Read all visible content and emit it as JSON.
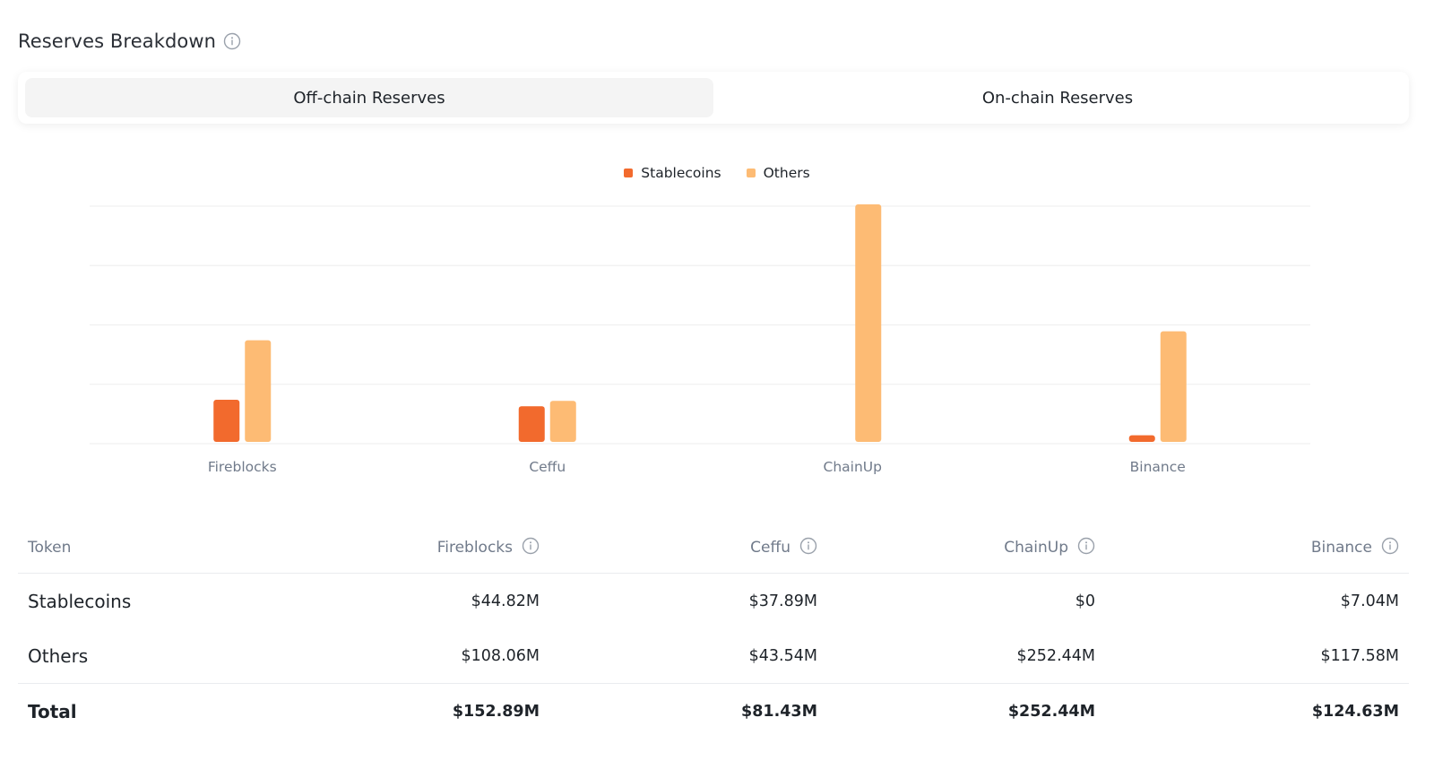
{
  "header": {
    "title": "Reserves Breakdown"
  },
  "tabs": [
    {
      "label": "Off-chain Reserves",
      "active": true
    },
    {
      "label": "On-chain Reserves",
      "active": false
    }
  ],
  "colors": {
    "stablecoins": "#f26a2d",
    "others": "#fdbb74",
    "grid": "#eeeeee",
    "axis_text": "#707a8a",
    "info_icon": "#9aa1ab"
  },
  "icons": {
    "info": "info-circle-icon"
  },
  "chart_data": {
    "type": "bar",
    "categories": [
      "Fireblocks",
      "Ceffu",
      "ChainUp",
      "Binance"
    ],
    "series": [
      {
        "name": "Stablecoins",
        "values": [
          44.82,
          37.89,
          0,
          7.04
        ]
      },
      {
        "name": "Others",
        "values": [
          108.06,
          43.54,
          252.44,
          117.58
        ]
      }
    ],
    "ylim": [
      0,
      252.44
    ],
    "grid": true,
    "legend": "top-center",
    "xlabel": "",
    "ylabel": ""
  },
  "table": {
    "headers": [
      "Token",
      "Fireblocks",
      "Ceffu",
      "ChainUp",
      "Binance"
    ],
    "rows": [
      {
        "label": "Stablecoins",
        "values": [
          "$44.82M",
          "$37.89M",
          "$0",
          "$7.04M"
        ]
      },
      {
        "label": "Others",
        "values": [
          "$108.06M",
          "$43.54M",
          "$252.44M",
          "$117.58M"
        ]
      }
    ],
    "total": {
      "label": "Total",
      "values": [
        "$152.89M",
        "$81.43M",
        "$252.44M",
        "$124.63M"
      ]
    }
  }
}
